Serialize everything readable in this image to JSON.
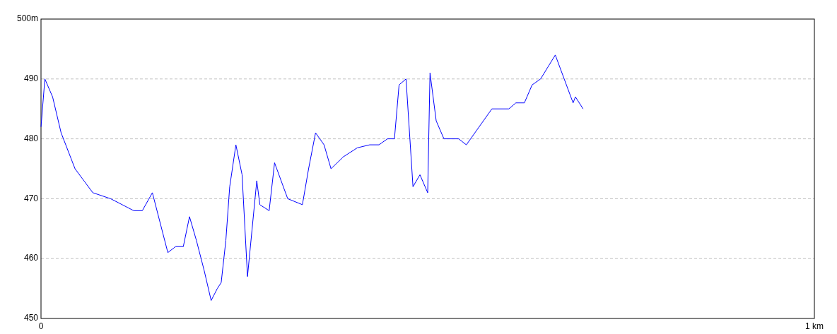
{
  "chart_data": {
    "type": "line",
    "x": [
      0,
      0.005,
      0.015,
      0.026,
      0.044,
      0.067,
      0.09,
      0.12,
      0.131,
      0.144,
      0.164,
      0.174,
      0.184,
      0.192,
      0.201,
      0.211,
      0.22,
      0.228,
      0.233,
      0.239,
      0.244,
      0.252,
      0.26,
      0.267,
      0.279,
      0.283,
      0.295,
      0.302,
      0.319,
      0.338,
      0.346,
      0.355,
      0.366,
      0.375,
      0.391,
      0.409,
      0.425,
      0.437,
      0.448,
      0.457,
      0.463,
      0.472,
      0.481,
      0.49,
      0.5,
      0.503,
      0.511,
      0.521,
      0.54,
      0.55,
      0.583,
      0.605,
      0.614,
      0.625,
      0.635,
      0.646,
      0.665,
      0.688,
      0.691,
      0.701
    ],
    "series": [
      {
        "color": "#0000ff",
        "values": [
          482,
          490,
          487,
          481,
          475,
          471,
          470,
          468,
          468,
          471,
          461,
          462,
          462,
          467,
          463,
          458,
          453,
          455,
          456,
          463,
          472,
          479,
          474,
          457,
          473,
          469,
          468,
          476,
          470,
          469,
          475,
          481,
          479,
          475,
          477,
          478.5,
          479,
          479,
          480,
          480,
          489,
          490,
          472,
          474,
          471,
          491,
          483,
          480,
          480,
          479,
          485,
          485,
          486,
          486,
          489,
          490,
          494,
          486,
          487,
          485
        ]
      }
    ],
    "xlim": [
      0,
      1
    ],
    "xticks": [
      0,
      {
        "value": 1,
        "label": "1 km"
      }
    ],
    "ylim": [
      450,
      500
    ],
    "yticks": [
      450,
      460,
      470,
      480,
      490,
      {
        "value": 500,
        "label": "500m"
      }
    ],
    "grid": "y"
  }
}
